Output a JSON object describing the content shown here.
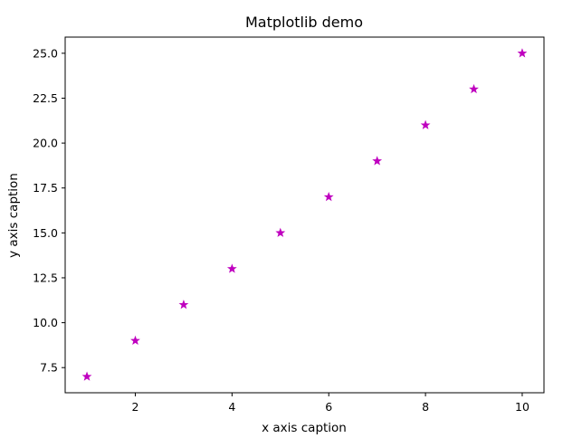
{
  "chart_data": {
    "type": "scatter",
    "title": "Matplotlib demo",
    "xlabel": "x axis caption",
    "ylabel": "y axis caption",
    "xlim": [
      0.55,
      10.45
    ],
    "ylim": [
      6.1,
      25.9
    ],
    "x_ticks": [
      2,
      4,
      6,
      8,
      10
    ],
    "x_tick_labels": [
      "2",
      "4",
      "6",
      "8",
      "10"
    ],
    "y_ticks": [
      7.5,
      10.0,
      12.5,
      15.0,
      17.5,
      20.0,
      22.5,
      25.0
    ],
    "y_tick_labels": [
      "7.5",
      "10.0",
      "12.5",
      "15.0",
      "17.5",
      "20.0",
      "22.5",
      "25.0"
    ],
    "grid": false,
    "marker": "star",
    "color": "#bf00bf",
    "series": [
      {
        "x": [
          1,
          2,
          3,
          4,
          5,
          6,
          7,
          8,
          9,
          10
        ],
        "y": [
          7,
          9,
          11,
          13,
          15,
          17,
          19,
          21,
          23,
          25
        ]
      }
    ]
  }
}
